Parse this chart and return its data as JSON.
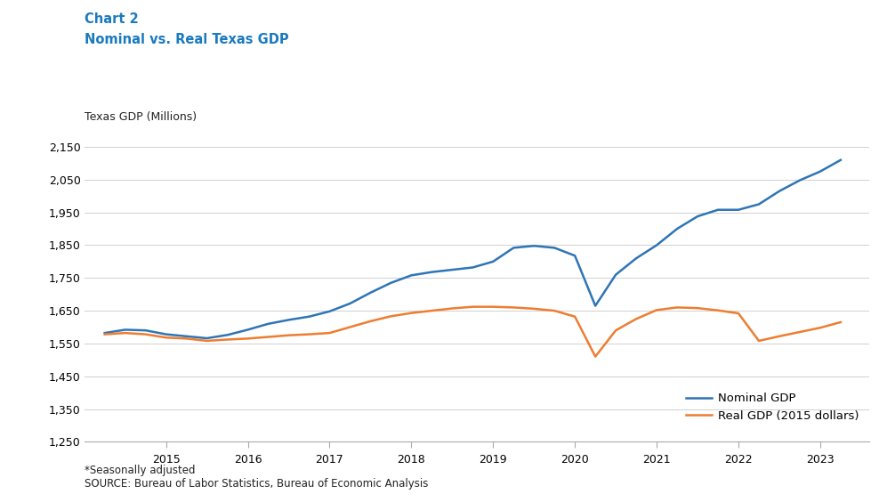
{
  "title_line1": "Chart 2",
  "title_line2": "Nominal vs. Real Texas GDP",
  "title_color": "#1a7abf",
  "ylabel": "Texas GDP (Millions)",
  "footnote1": "*Seasonally adjusted",
  "footnote2": "SOURCE: Bureau of Labor Statistics, Bureau of Economic Analysis",
  "legend_labels": [
    "Nominal GDP",
    "Real GDP (2015 dollars)"
  ],
  "nominal_color": "#2e75b6",
  "real_color": "#ed7d31",
  "ylim": [
    1250,
    2200
  ],
  "yticks": [
    1250,
    1350,
    1450,
    1550,
    1650,
    1750,
    1850,
    1950,
    2050,
    2150
  ],
  "xlim": [
    2014.0,
    2023.6
  ],
  "xticks": [
    2015,
    2016,
    2017,
    2018,
    2019,
    2020,
    2021,
    2022,
    2023
  ],
  "nominal_x": [
    2014.25,
    2014.5,
    2014.75,
    2015.0,
    2015.25,
    2015.5,
    2015.75,
    2016.0,
    2016.25,
    2016.5,
    2016.75,
    2017.0,
    2017.25,
    2017.5,
    2017.75,
    2018.0,
    2018.25,
    2018.5,
    2018.75,
    2019.0,
    2019.25,
    2019.5,
    2019.75,
    2020.0,
    2020.25,
    2020.5,
    2020.75,
    2021.0,
    2021.25,
    2021.5,
    2021.75,
    2022.0,
    2022.25,
    2022.5,
    2022.75,
    2023.0,
    2023.25
  ],
  "nominal_y": [
    1582,
    1592,
    1590,
    1578,
    1572,
    1566,
    1576,
    1592,
    1610,
    1622,
    1632,
    1648,
    1672,
    1705,
    1735,
    1758,
    1768,
    1775,
    1782,
    1800,
    1842,
    1848,
    1842,
    1818,
    1665,
    1760,
    1810,
    1850,
    1900,
    1938,
    1958,
    1958,
    1975,
    2015,
    2048,
    2075,
    2110
  ],
  "real_x": [
    2014.25,
    2014.5,
    2014.75,
    2015.0,
    2015.25,
    2015.5,
    2015.75,
    2016.0,
    2016.25,
    2016.5,
    2016.75,
    2017.0,
    2017.25,
    2017.5,
    2017.75,
    2018.0,
    2018.25,
    2018.5,
    2018.75,
    2019.0,
    2019.25,
    2019.5,
    2019.75,
    2020.0,
    2020.25,
    2020.5,
    2020.75,
    2021.0,
    2021.25,
    2021.5,
    2021.75,
    2022.0,
    2022.25,
    2022.5,
    2022.75,
    2023.0,
    2023.25
  ],
  "real_y": [
    1578,
    1582,
    1578,
    1568,
    1565,
    1558,
    1562,
    1565,
    1570,
    1575,
    1578,
    1582,
    1600,
    1618,
    1633,
    1643,
    1650,
    1657,
    1662,
    1662,
    1660,
    1656,
    1650,
    1632,
    1510,
    1590,
    1625,
    1652,
    1660,
    1658,
    1651,
    1642,
    1558,
    1572,
    1585,
    1598,
    1615
  ]
}
